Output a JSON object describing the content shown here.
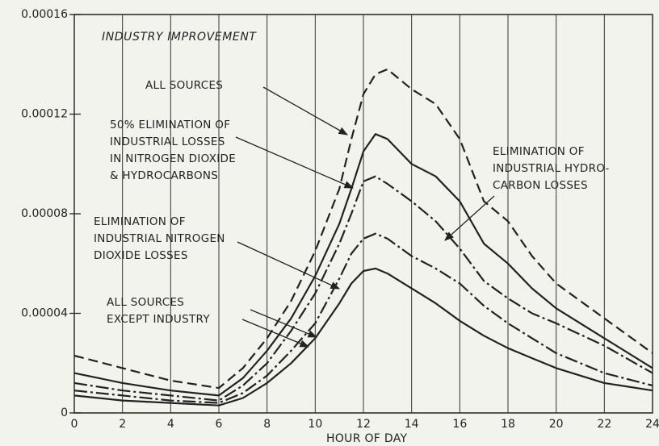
{
  "chart_data": {
    "type": "line",
    "annotation": "INDUSTRY IMPROVEMENT",
    "x_label": "HOUR OF DAY",
    "x": [
      0,
      2,
      4,
      6,
      7,
      8,
      9,
      10,
      11,
      11.5,
      12,
      12.5,
      13,
      14,
      15,
      16,
      17,
      18,
      19,
      20,
      22,
      24
    ],
    "xlim": [
      0,
      24
    ],
    "xticks": [
      0,
      2,
      4,
      6,
      8,
      10,
      12,
      14,
      16,
      18,
      20,
      22,
      24
    ],
    "ylim": [
      0,
      0.00016
    ],
    "yticks": [
      0,
      4e-05,
      8e-05,
      0.00012,
      0.00016
    ],
    "grid": "x",
    "series": [
      {
        "name": "ALL SOURCES",
        "color": "#222222",
        "line_style": "dashed",
        "values": [
          2.3e-05,
          1.8e-05,
          1.3e-05,
          1e-05,
          1.8e-05,
          3e-05,
          4.5e-05,
          6.5e-05,
          9e-05,
          0.00011,
          0.000128,
          0.000136,
          0.000138,
          0.00013,
          0.000124,
          0.00011,
          8.5e-05,
          7.7e-05,
          6.3e-05,
          5.2e-05,
          3.8e-05,
          2.4e-05
        ]
      },
      {
        "name": "ELIMINATION OF\nINDUSTRIAL HYDRO-\nCARBON LOSSES",
        "color": "#222222",
        "line_style": "solid",
        "values": [
          1.6e-05,
          1.2e-05,
          9e-06,
          7e-06,
          1.4e-05,
          2.5e-05,
          3.8e-05,
          5.5e-05,
          7.6e-05,
          9e-05,
          0.000105,
          0.000112,
          0.00011,
          0.0001,
          9.5e-05,
          8.5e-05,
          6.8e-05,
          6e-05,
          5e-05,
          4.2e-05,
          3e-05,
          1.8e-05
        ]
      },
      {
        "name": "50% ELIMINATION OF\nINDUSTRIAL LOSSES\nIN NITROGEN DIOXIDE\n& HYDROCARBONS",
        "color": "#222222",
        "line_style": "dashdot",
        "values": [
          1.2e-05,
          9e-06,
          7e-06,
          5e-06,
          1.1e-05,
          2e-05,
          3.3e-05,
          4.8e-05,
          6.8e-05,
          8e-05,
          9.3e-05,
          9.5e-05,
          9.2e-05,
          8.5e-05,
          7.7e-05,
          6.6e-05,
          5.3e-05,
          4.6e-05,
          4e-05,
          3.6e-05,
          2.7e-05,
          1.6e-05
        ]
      },
      {
        "name": "ELIMINATION OF\nINDUSTRIAL NITROGEN\nDIOXIDE LOSSES",
        "color": "#222222",
        "line_style": "dashdot",
        "values": [
          9e-06,
          7e-06,
          5e-06,
          4e-06,
          8e-06,
          1.5e-05,
          2.5e-05,
          3.6e-05,
          5.4e-05,
          6.4e-05,
          7e-05,
          7.2e-05,
          7e-05,
          6.3e-05,
          5.8e-05,
          5.2e-05,
          4.3e-05,
          3.6e-05,
          3e-05,
          2.4e-05,
          1.6e-05,
          1.1e-05
        ]
      },
      {
        "name": "ALL SOURCES\nEXCEPT INDUSTRY",
        "color": "#222222",
        "line_style": "solid",
        "values": [
          7e-06,
          5e-06,
          4e-06,
          3e-06,
          6e-06,
          1.2e-05,
          2e-05,
          3e-05,
          4.4e-05,
          5.2e-05,
          5.7e-05,
          5.8e-05,
          5.6e-05,
          5e-05,
          4.4e-05,
          3.7e-05,
          3.1e-05,
          2.6e-05,
          2.2e-05,
          1.8e-05,
          1.2e-05,
          9e-06
        ]
      }
    ]
  }
}
